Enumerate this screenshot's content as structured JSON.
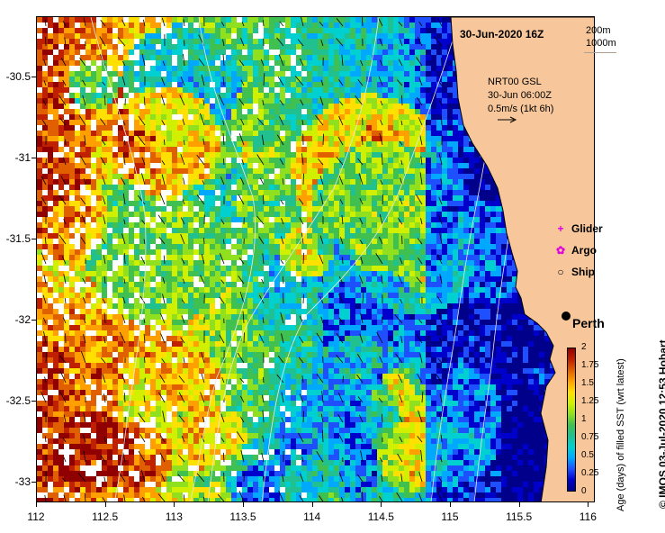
{
  "map": {
    "title": "30-Jun-2020 16Z",
    "contour_keys": [
      "200m",
      "1000m"
    ],
    "current_info": [
      "NRT00 GSL",
      "30-Jun 06:00Z",
      "0.5m/s (1kt 6h)"
    ],
    "legend": [
      {
        "label": "Glider",
        "symbol": "+",
        "color": "#e000e0"
      },
      {
        "label": "Argo",
        "symbol": "✿",
        "color": "#e000e0"
      },
      {
        "label": "Ship",
        "symbol": "○",
        "color": "#000000"
      }
    ],
    "city": "Perth",
    "credit": "© IMOS 03-Jul-2020 12:53 Hobart",
    "colors": {
      "land": "#f7c79b",
      "coast": "#ffffff"
    }
  },
  "axes": {
    "x_ticks": [
      "112",
      "112.5",
      "113",
      "113.5",
      "114",
      "114.5",
      "115",
      "115.5",
      "116"
    ],
    "y_ticks": [
      "-30.5",
      "-31",
      "-31.5",
      "-32",
      "-32.5",
      "-33"
    ],
    "x_range": [
      112,
      116.05
    ],
    "y_range": [
      -33.13,
      -30.13
    ]
  },
  "colorbar": {
    "label": "Age (days) of filled SST (wrt latest)",
    "ticks": [
      "2",
      "1.75",
      "1.5",
      "1.25",
      "1",
      "0.75",
      "0.5",
      "0.25",
      "0"
    ],
    "range": [
      0,
      2
    ],
    "colors": [
      "#00008b",
      "#0000cd",
      "#1e50ff",
      "#00a8ff",
      "#00d0d0",
      "#20c090",
      "#40c050",
      "#90e020",
      "#d0f000",
      "#ffe000",
      "#ffa000",
      "#e06000",
      "#c02000",
      "#900000"
    ]
  }
}
